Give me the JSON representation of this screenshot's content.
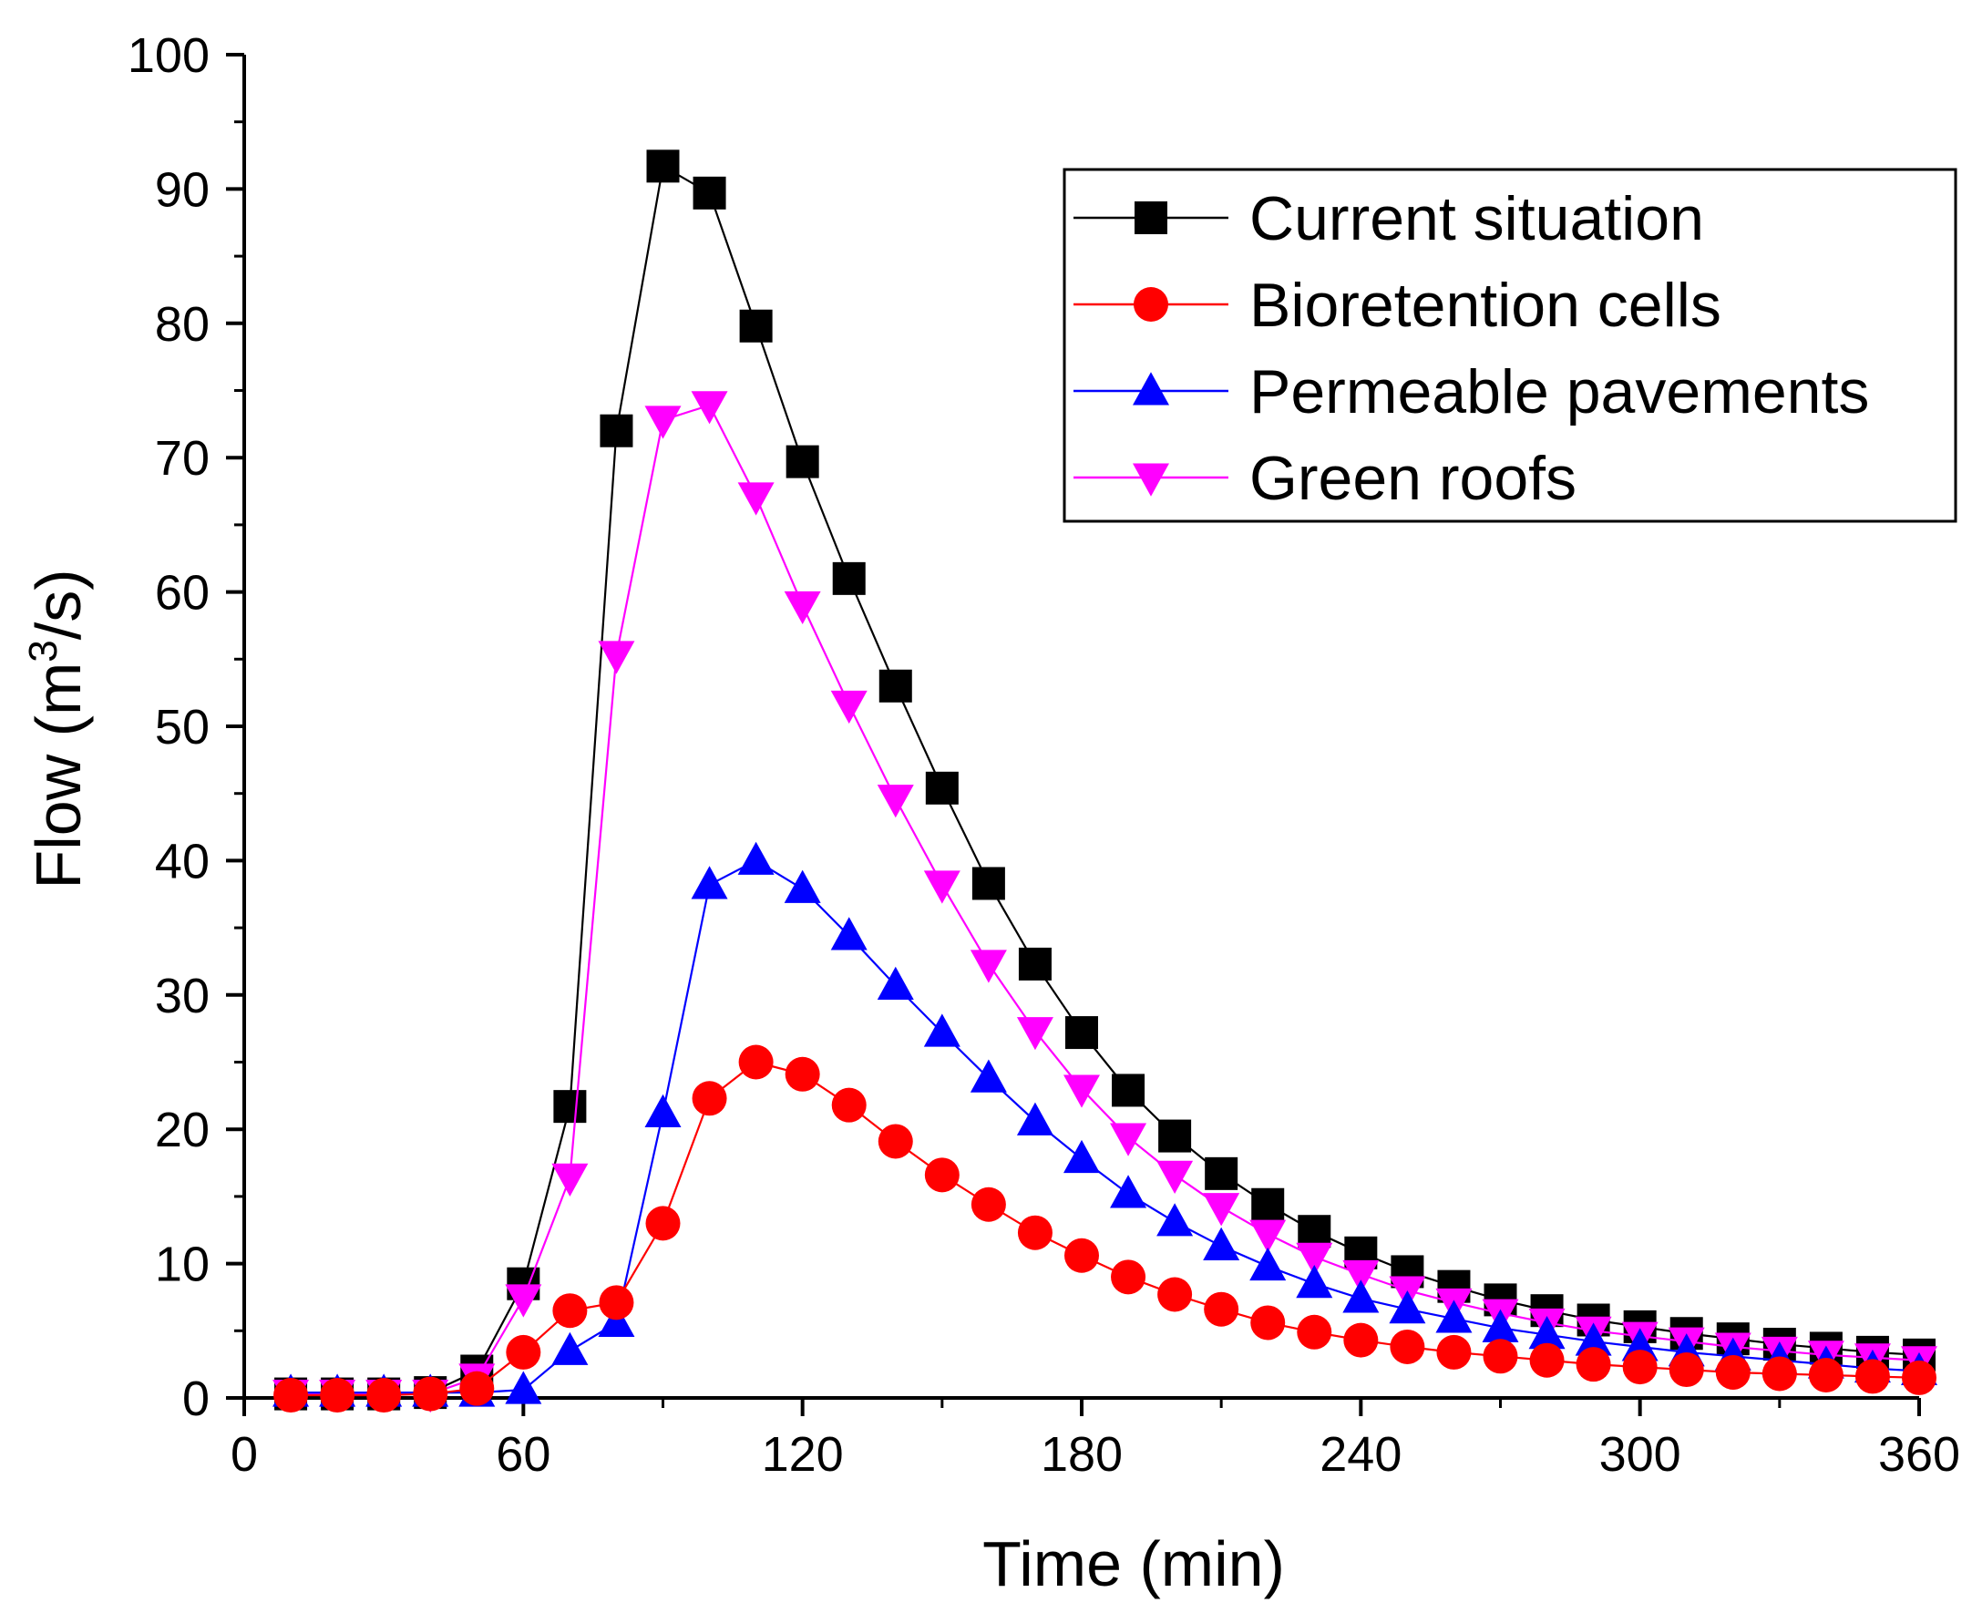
{
  "chart_data": {
    "type": "line",
    "title": "",
    "xlabel": "Time (min)",
    "ylabel_main": "Flow (m",
    "ylabel_sup": "3",
    "ylabel_end": "/s)",
    "xlim": [
      0,
      360
    ],
    "ylim": [
      0,
      100
    ],
    "xticks": [
      "0",
      "60",
      "120",
      "180",
      "240",
      "300",
      "360"
    ],
    "yticks": [
      "0",
      "10",
      "20",
      "30",
      "40",
      "50",
      "60",
      "70",
      "80",
      "90",
      "100"
    ],
    "grid": false,
    "legend_position": "top-right",
    "x": [
      10,
      20,
      30,
      40,
      50,
      60,
      70,
      80,
      90,
      100,
      110,
      120,
      130,
      140,
      150,
      160,
      170,
      180,
      190,
      200,
      210,
      220,
      230,
      240,
      250,
      260,
      270,
      280,
      290,
      300,
      310,
      320,
      330,
      340,
      350,
      360
    ],
    "series": [
      {
        "name": "Current situation",
        "color": "#000000",
        "marker": "square",
        "values": [
          0.3,
          0.3,
          0.3,
          0.4,
          2.0,
          8.5,
          21.7,
          72.0,
          91.7,
          89.7,
          79.8,
          69.7,
          61.0,
          53.0,
          45.4,
          38.3,
          32.3,
          27.2,
          22.9,
          19.5,
          16.7,
          14.4,
          12.4,
          10.8,
          9.4,
          8.3,
          7.3,
          6.5,
          5.8,
          5.3,
          4.8,
          4.4,
          4.0,
          3.7,
          3.4,
          3.2
        ]
      },
      {
        "name": "Bioretention cells",
        "color": "#ff0000",
        "marker": "circle",
        "values": [
          0.2,
          0.2,
          0.2,
          0.3,
          0.7,
          3.4,
          6.5,
          7.1,
          13.0,
          22.3,
          25.0,
          24.1,
          21.8,
          19.1,
          16.6,
          14.4,
          12.3,
          10.6,
          9.0,
          7.7,
          6.6,
          5.6,
          4.9,
          4.3,
          3.8,
          3.4,
          3.1,
          2.8,
          2.5,
          2.3,
          2.1,
          1.9,
          1.8,
          1.7,
          1.6,
          1.5
        ]
      },
      {
        "name": "Permeable pavements",
        "color": "#0000ff",
        "marker": "triangle-up",
        "values": [
          0.4,
          0.4,
          0.4,
          0.4,
          0.4,
          0.6,
          3.5,
          5.6,
          21.2,
          38.2,
          40.0,
          37.9,
          34.4,
          30.7,
          27.2,
          23.8,
          20.6,
          17.8,
          15.2,
          13.1,
          11.3,
          9.8,
          8.5,
          7.4,
          6.6,
          5.9,
          5.2,
          4.7,
          4.2,
          3.8,
          3.4,
          3.1,
          2.8,
          2.5,
          2.2,
          2.0
        ]
      },
      {
        "name": "Green roofs",
        "color": "#ff00ff",
        "marker": "triangle-down",
        "values": [
          0.3,
          0.3,
          0.3,
          0.3,
          1.5,
          7.4,
          16.4,
          55.3,
          72.8,
          73.9,
          67.1,
          59.0,
          51.6,
          44.6,
          38.2,
          32.3,
          27.3,
          23.0,
          19.4,
          16.6,
          14.2,
          12.2,
          10.5,
          9.2,
          8.0,
          7.1,
          6.3,
          5.6,
          5.0,
          4.6,
          4.2,
          3.8,
          3.5,
          3.2,
          3.0,
          2.8
        ]
      }
    ]
  }
}
